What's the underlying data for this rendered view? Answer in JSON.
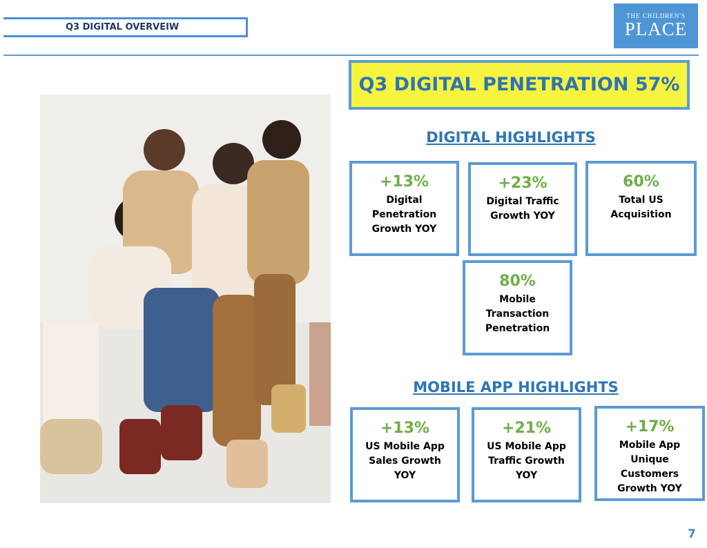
{
  "header": {
    "title": "Q3 DIGITAL OVERVEIW",
    "logo": {
      "top": "THE CHILDREN'S",
      "main": "PLACE"
    }
  },
  "headline": "Q3 DIGITAL PENETRATION 57%",
  "sections": [
    {
      "title": "DIGITAL HIGHLIGHTS",
      "cards": [
        {
          "value": "+13%",
          "label": [
            "Digital",
            "Penetration",
            "Growth YOY"
          ]
        },
        {
          "value": "+23%",
          "label": [
            "Digital Traffic",
            "Growth YOY"
          ]
        },
        {
          "value": "60%",
          "label": [
            "Total US",
            "Acquisition"
          ]
        },
        {
          "value": "80%",
          "label": [
            "Mobile",
            "Transaction",
            "Penetration"
          ]
        }
      ]
    },
    {
      "title": "MOBILE APP HIGHLIGHTS",
      "cards": [
        {
          "value": "+13%",
          "label": [
            "US Mobile App",
            "Sales Growth",
            "YOY"
          ]
        },
        {
          "value": "+21%",
          "label": [
            "US Mobile App",
            "Traffic Growth",
            "YOY"
          ]
        },
        {
          "value": "+17%",
          "label": [
            "Mobile App",
            "Unique",
            "Customers",
            "Growth YOY"
          ]
        }
      ]
    }
  ],
  "page_number": "7"
}
